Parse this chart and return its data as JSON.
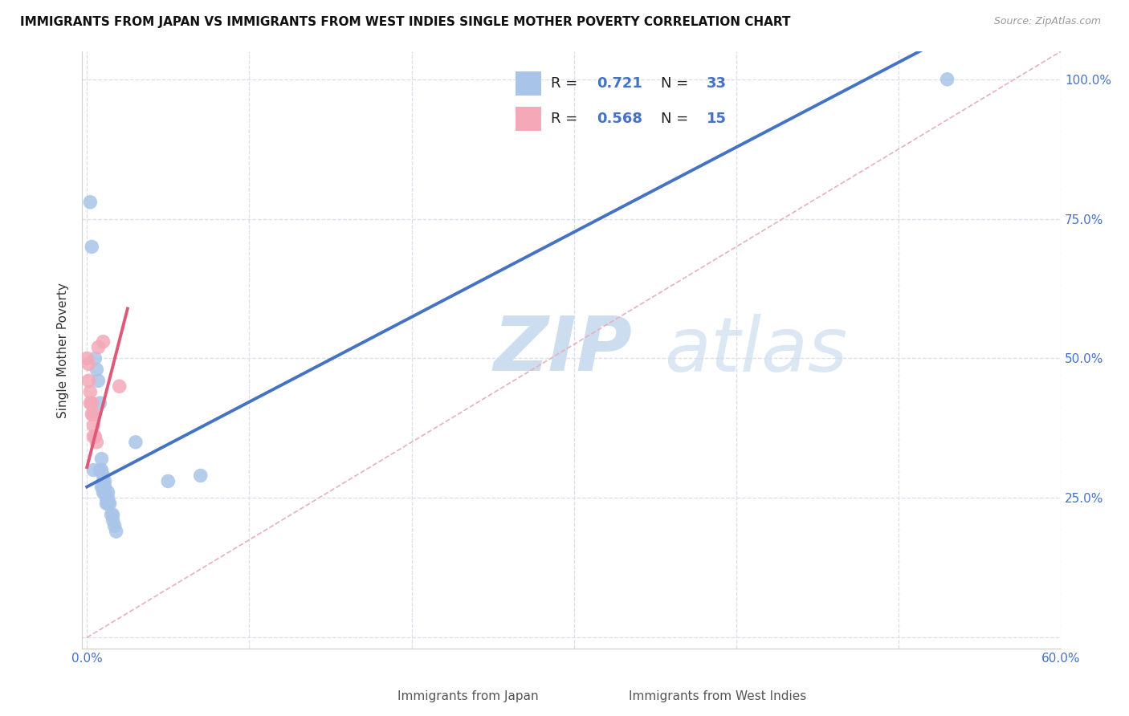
{
  "title": "IMMIGRANTS FROM JAPAN VS IMMIGRANTS FROM WEST INDIES SINGLE MOTHER POVERTY CORRELATION CHART",
  "source": "Source: ZipAtlas.com",
  "ylabel": "Single Mother Poverty",
  "xlim": [
    0.0,
    0.6
  ],
  "ylim": [
    0.0,
    1.05
  ],
  "x_ticks": [
    0.0,
    0.1,
    0.2,
    0.3,
    0.4,
    0.5,
    0.6
  ],
  "x_tick_labels": [
    "0.0%",
    "",
    "",
    "",
    "",
    "",
    "60.0%"
  ],
  "y_ticks": [
    0.0,
    0.25,
    0.5,
    0.75,
    1.0
  ],
  "y_tick_labels": [
    "",
    "25.0%",
    "50.0%",
    "75.0%",
    "100.0%"
  ],
  "r_japan": 0.721,
  "n_japan": 33,
  "r_wi": 0.568,
  "n_wi": 15,
  "japan_color": "#a8c4e8",
  "wi_color": "#f4a8b8",
  "japan_line_color": "#4472c4",
  "wi_line_color": "#e05878",
  "diag_line_color": "#e8b0bc",
  "japan_line_x0": 0.0,
  "japan_line_y0": 0.27,
  "japan_line_x1": 0.48,
  "japan_line_y1": 1.0,
  "wi_line_x0": 0.0,
  "wi_line_y0": 0.305,
  "wi_line_x1": 0.022,
  "wi_line_y1": 0.555,
  "diag_line_x0": 0.0,
  "diag_line_y0": 0.0,
  "diag_line_x1": 0.6,
  "diag_line_y1": 1.05,
  "japan_scatter": [
    [
      0.002,
      0.78
    ],
    [
      0.003,
      0.7
    ],
    [
      0.004,
      0.3
    ],
    [
      0.005,
      0.5
    ],
    [
      0.006,
      0.48
    ],
    [
      0.007,
      0.46
    ],
    [
      0.008,
      0.3
    ],
    [
      0.008,
      0.42
    ],
    [
      0.009,
      0.27
    ],
    [
      0.009,
      0.32
    ],
    [
      0.009,
      0.3
    ],
    [
      0.01,
      0.29
    ],
    [
      0.01,
      0.28
    ],
    [
      0.01,
      0.27
    ],
    [
      0.01,
      0.26
    ],
    [
      0.011,
      0.28
    ],
    [
      0.011,
      0.27
    ],
    [
      0.011,
      0.26
    ],
    [
      0.012,
      0.25
    ],
    [
      0.012,
      0.24
    ],
    [
      0.013,
      0.26
    ],
    [
      0.013,
      0.25
    ],
    [
      0.013,
      0.24
    ],
    [
      0.014,
      0.24
    ],
    [
      0.015,
      0.22
    ],
    [
      0.016,
      0.22
    ],
    [
      0.016,
      0.21
    ],
    [
      0.017,
      0.2
    ],
    [
      0.018,
      0.19
    ],
    [
      0.03,
      0.35
    ],
    [
      0.05,
      0.28
    ],
    [
      0.07,
      0.29
    ],
    [
      0.53,
      1.0
    ]
  ],
  "wi_scatter": [
    [
      0.001,
      0.49
    ],
    [
      0.001,
      0.46
    ],
    [
      0.002,
      0.44
    ],
    [
      0.002,
      0.42
    ],
    [
      0.003,
      0.42
    ],
    [
      0.003,
      0.4
    ],
    [
      0.004,
      0.4
    ],
    [
      0.004,
      0.38
    ],
    [
      0.004,
      0.36
    ],
    [
      0.005,
      0.36
    ],
    [
      0.006,
      0.35
    ],
    [
      0.007,
      0.52
    ],
    [
      0.01,
      0.53
    ],
    [
      0.02,
      0.45
    ],
    [
      0.0,
      0.5
    ]
  ],
  "background_color": "#ffffff",
  "grid_color": "#d8dfe8",
  "title_fontsize": 11,
  "label_fontsize": 11,
  "tick_fontsize": 11,
  "legend_fontsize": 13,
  "scatter_size": 160
}
